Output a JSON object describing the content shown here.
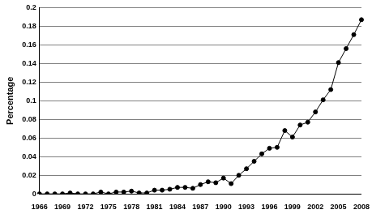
{
  "chart_data": {
    "type": "line",
    "y_label": "Percentage",
    "categories": [
      "1966",
      null,
      null,
      "1969",
      null,
      null,
      "1972",
      null,
      null,
      "1975",
      null,
      null,
      "1978",
      null,
      null,
      "1981",
      null,
      null,
      "1984",
      null,
      null,
      "1987",
      null,
      null,
      "1990",
      null,
      null,
      "1993",
      null,
      null,
      "1996",
      null,
      null,
      "1999",
      null,
      null,
      "2002",
      null,
      null,
      "2005",
      null,
      null,
      "2008"
    ],
    "values": [
      0,
      0,
      0,
      0,
      0.001,
      0,
      0,
      0,
      0.002,
      0,
      0.002,
      0.002,
      0.003,
      0.001,
      0.001,
      0.004,
      0.004,
      0.005,
      0.007,
      0.007,
      0.006,
      0.01,
      0.013,
      0.012,
      0.017,
      0.011,
      0.02,
      0.027,
      0.035,
      0.043,
      0.049,
      0.05,
      0.068,
      0.061,
      0.074,
      0.077,
      0.088,
      0.101,
      0.112,
      0.141,
      0.156,
      0.171,
      0.187
    ],
    "color": "#000000",
    "marker": "circle",
    "ylim": [
      0,
      0.2
    ],
    "yticks": [
      0,
      0.02,
      0.04,
      0.06,
      0.08,
      0.1,
      0.12,
      0.14,
      0.16,
      0.18,
      0.2
    ],
    "grid": true
  }
}
